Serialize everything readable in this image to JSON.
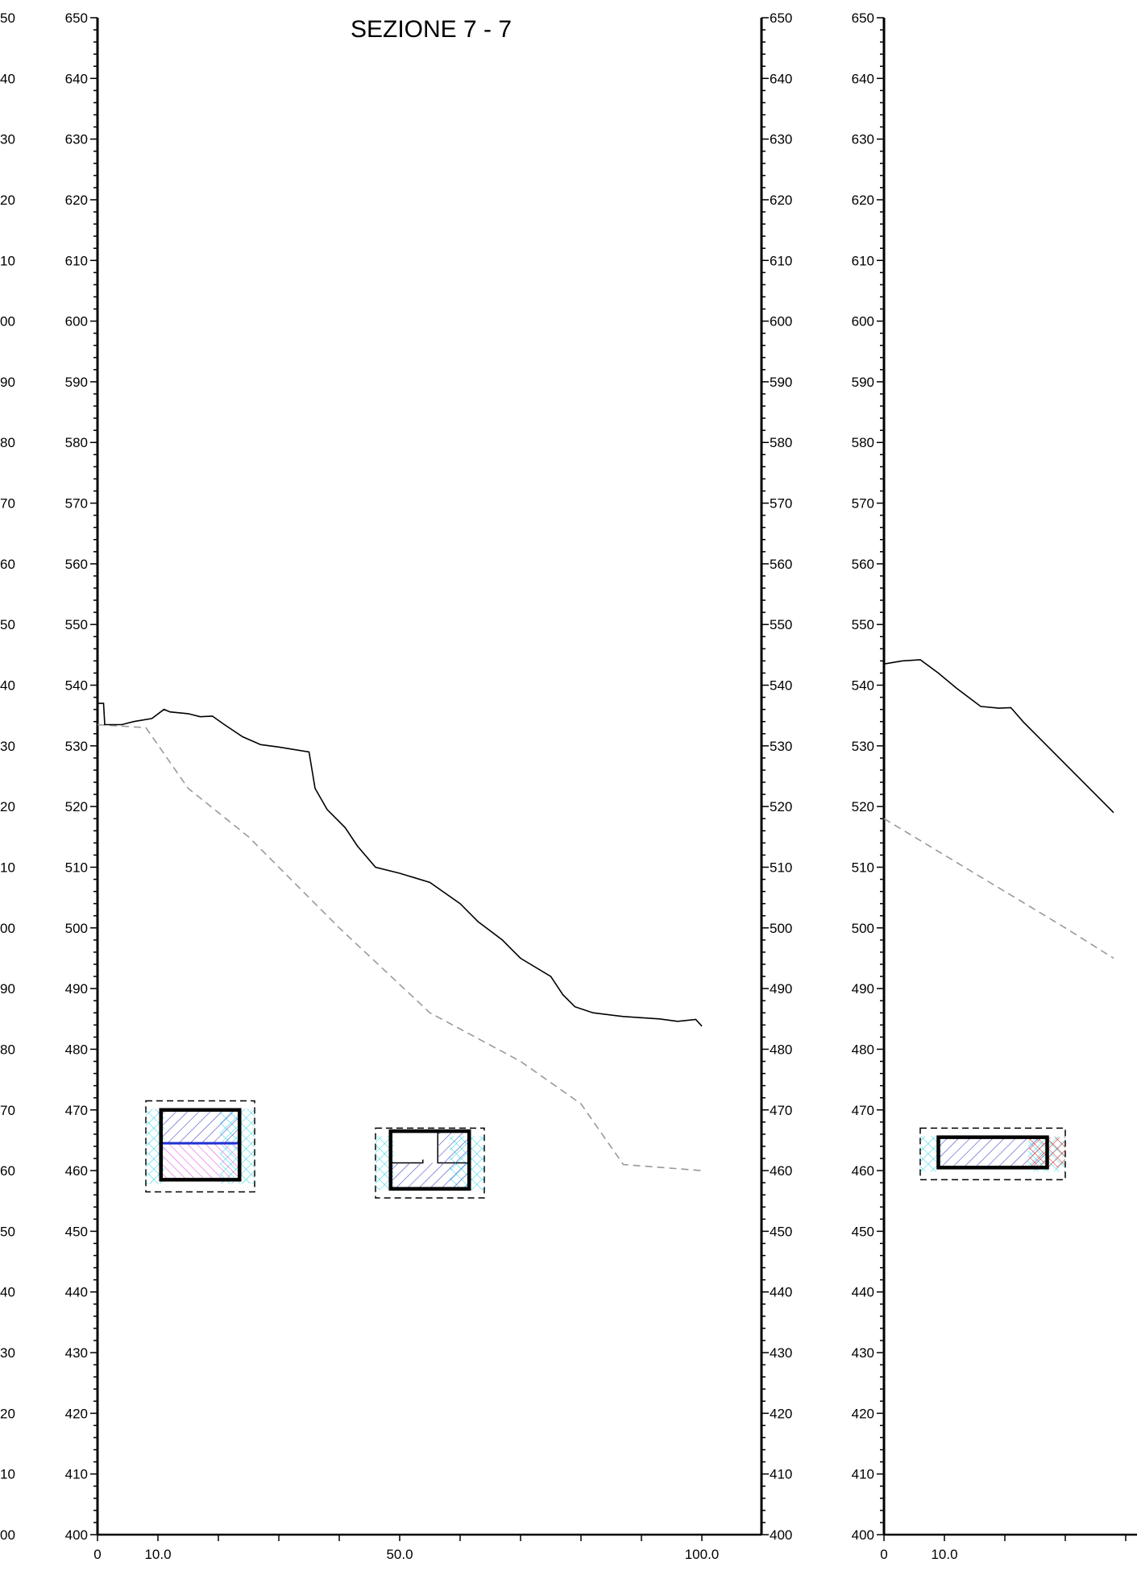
{
  "sections": [
    {
      "title": "SEZIONE 7 - 7",
      "x_axis": {
        "labeled_ticks": [
          {
            "value": 0,
            "label": "0"
          },
          {
            "value": 10,
            "label": "10.0"
          },
          {
            "value": 50,
            "label": "50.0"
          },
          {
            "value": 100,
            "label": "100.0"
          }
        ],
        "range": [
          0,
          110
        ]
      },
      "y_axis": {
        "range": [
          400,
          650
        ],
        "major_step": 10,
        "minor_step": 2
      },
      "ground_profile": [
        [
          0,
          537
        ],
        [
          1,
          537
        ],
        [
          1.2,
          533.5
        ],
        [
          4,
          533.5
        ],
        [
          6,
          534
        ],
        [
          9,
          534.5
        ],
        [
          11,
          536
        ],
        [
          12,
          535.6
        ],
        [
          15,
          535.3
        ],
        [
          17,
          534.8
        ],
        [
          19,
          534.9
        ],
        [
          21,
          533.5
        ],
        [
          24,
          531.5
        ],
        [
          27,
          530.2
        ],
        [
          30,
          529.8
        ],
        [
          35,
          529
        ],
        [
          36,
          523
        ],
        [
          38,
          519.5
        ],
        [
          41,
          516.5
        ],
        [
          43,
          513.5
        ],
        [
          46,
          510
        ],
        [
          50,
          509
        ],
        [
          55,
          507.5
        ],
        [
          60,
          504
        ],
        [
          63,
          501
        ],
        [
          67,
          498
        ],
        [
          70,
          495
        ],
        [
          75,
          492
        ],
        [
          77,
          489
        ],
        [
          79,
          487
        ],
        [
          82,
          486
        ],
        [
          87,
          485.4
        ],
        [
          93,
          485
        ],
        [
          96,
          484.6
        ],
        [
          99,
          484.9
        ],
        [
          100,
          483.8
        ]
      ],
      "bedrock_profile": [
        [
          0,
          533.5
        ],
        [
          8,
          533
        ],
        [
          15,
          523
        ],
        [
          25,
          515
        ],
        [
          40,
          500
        ],
        [
          55,
          486
        ],
        [
          70,
          478
        ],
        [
          80,
          471
        ],
        [
          87,
          461
        ],
        [
          100,
          460
        ]
      ],
      "tunnels": [
        {
          "x1": 8,
          "x2": 26,
          "y1": 456.5,
          "y2": 471.5,
          "inner": [
            10.5,
            23.5,
            458.5,
            470
          ],
          "divider_y": 464.5,
          "lining": "cyan",
          "fill_top": "blue-hatch",
          "fill_bottom": "magenta-hatch"
        },
        {
          "x1": 46,
          "x2": 64,
          "y1": 455.5,
          "y2": 467,
          "inner": [
            48.5,
            61.5,
            457,
            466.5
          ],
          "lining": "cyan",
          "fill": "blue-hatch-partial"
        }
      ]
    },
    {
      "title": "",
      "x_axis": {
        "labeled_ticks": [
          {
            "value": 0,
            "label": "0"
          },
          {
            "value": 10,
            "label": "10.0"
          }
        ],
        "range": [
          0,
          110
        ]
      },
      "y_axis": {
        "range": [
          400,
          650
        ],
        "major_step": 10,
        "minor_step": 2
      },
      "ground_profile": [
        [
          0,
          543.5
        ],
        [
          3,
          544
        ],
        [
          6,
          544.2
        ],
        [
          9,
          542
        ],
        [
          12,
          539.5
        ],
        [
          16,
          536.5
        ],
        [
          19,
          536.2
        ],
        [
          21,
          536.3
        ],
        [
          23,
          534
        ],
        [
          26,
          531
        ],
        [
          30,
          527
        ],
        [
          34,
          523
        ],
        [
          38,
          519
        ]
      ],
      "bedrock_profile": [
        [
          0,
          518
        ],
        [
          10,
          512
        ],
        [
          20,
          506
        ],
        [
          30,
          500
        ],
        [
          38,
          495
        ]
      ],
      "tunnels": [
        {
          "x1": 6,
          "x2": 30,
          "y1": 458.5,
          "y2": 467,
          "inner": [
            9,
            27,
            460.5,
            465.5
          ],
          "lining": "cyan",
          "fill": "blue-hatch",
          "end_fill": "red"
        }
      ]
    }
  ],
  "left_edge_labels": [
    "50",
    "40",
    "30",
    "20",
    "10",
    "00",
    "90",
    "80",
    "70",
    "60",
    "50",
    "40",
    "30",
    "20",
    "10",
    "00",
    "90",
    "80",
    "70",
    "60",
    "50",
    "40",
    "30",
    "20",
    "10",
    "00"
  ],
  "colors": {
    "axis": "#000000",
    "ground": "#000000",
    "bedrock": "#999999",
    "cyan_lining": "#22d3e6",
    "blue_hatch": "#4a4ac8",
    "magenta_hatch": "#e040e0",
    "red_hatch": "#e02020",
    "divider": "#2030d0"
  }
}
